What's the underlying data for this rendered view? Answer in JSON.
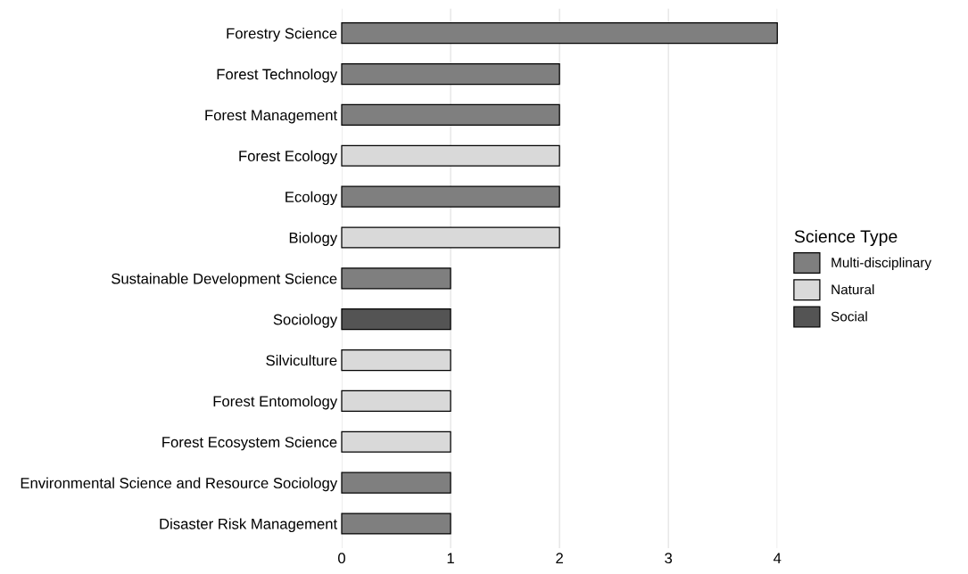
{
  "chart_data": {
    "type": "bar",
    "orientation": "horizontal",
    "stacked": true,
    "categories": [
      "Forestry Science",
      "Forest Technology",
      "Forest Management",
      "Forest Ecology",
      "Ecology",
      "Biology",
      "Sustainable Development Science",
      "Sociology",
      "Silviculture",
      "Forest Entomology",
      "Forest Ecosystem Science",
      "Environmental Science and Resource Sociology",
      "Disaster Risk Management"
    ],
    "series": [
      {
        "name": "Multi-disciplinary",
        "color": "#7f7f7f",
        "values": [
          4,
          2,
          2,
          null,
          2,
          null,
          1,
          null,
          null,
          null,
          null,
          1,
          1
        ]
      },
      {
        "name": "Natural",
        "color": "#d9d9d9",
        "values": [
          null,
          null,
          null,
          2,
          null,
          2,
          null,
          null,
          1,
          1,
          1,
          null,
          null
        ]
      },
      {
        "name": "Social",
        "color": "#545454",
        "values": [
          null,
          null,
          null,
          null,
          null,
          null,
          null,
          1,
          null,
          null,
          null,
          null,
          null
        ]
      }
    ],
    "xlim": [
      0,
      4
    ],
    "xticks": [
      0,
      1,
      2,
      3,
      4
    ],
    "grid": "x",
    "legend": "right",
    "legend_title": "Science Type"
  }
}
